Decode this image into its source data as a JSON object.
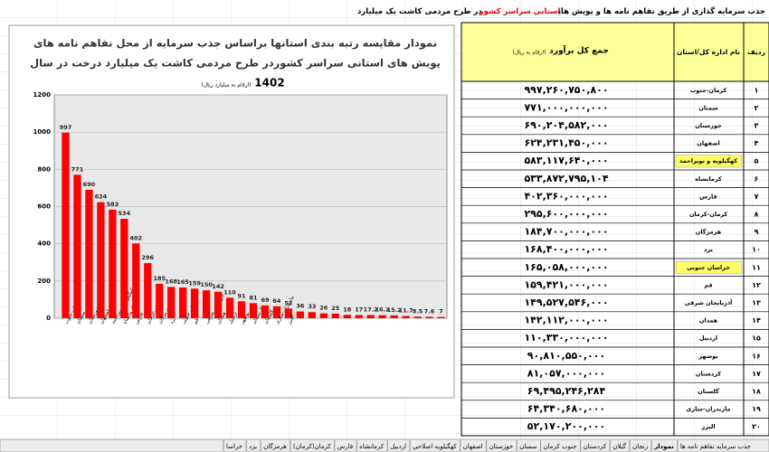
{
  "header": {
    "title_parts": [
      "جذب سرمایه گذاری از طریق تفاهم نامه ها و پویش های",
      "استانی سراسر کشور",
      "در طرح مردمی کاشت یک میلیارد"
    ]
  },
  "chart_data": {
    "type": "bar",
    "title": [
      "نمودار مقایسه رتبه بندی استانها براساس جذب سرمایه از محل تفاهم نامه های",
      "پویش های استانی سراسر کشوردر طرح مردمی کاشت یک میلیارد درخت در سال"
    ],
    "year": "1402",
    "subtitle": "(ارقام به میلیارد ریال)",
    "categories": [
      "کرمان-جنوب",
      "سمنان",
      "خوزستان",
      "اصفهان",
      "کهگیلویه و بویراحمد",
      "کرمانشاه",
      "فارس",
      "کرمان-کرمان",
      "هرمزگان",
      "یزد",
      "خراسان جنوبی",
      "قم",
      "آذربایجان شرقی",
      "همدان",
      "اردبیل",
      "بوشهر",
      "کردستان",
      "گلستان",
      "مازندران-ساری",
      "البرز",
      null,
      null,
      null,
      null,
      null,
      null,
      null,
      null,
      null,
      null,
      null,
      null,
      null
    ],
    "values": [
      997,
      771,
      690,
      624,
      583,
      534,
      402,
      296,
      185,
      168,
      165,
      159,
      150,
      142,
      110,
      91,
      81,
      69,
      64,
      52,
      36,
      33,
      26,
      25,
      18,
      17,
      17.2,
      16.2,
      15.2,
      11.7,
      8.5,
      7.6,
      7
    ],
    "color": "#ff0000",
    "ylim": [
      0,
      1200
    ],
    "yticks": [
      0,
      200,
      400,
      600,
      800,
      1000,
      1200
    ],
    "grid": true
  },
  "table": {
    "headers": [
      "ردیف",
      "نام اداره کل/استان",
      "جمع کل برآورد",
      "(ارقام به ریال)"
    ],
    "rows": [
      [
        "۱",
        "کرمان-جنوب",
        "۹۹۷,۲۶۰,۷۵۰,۸۰۰"
      ],
      [
        "۲",
        "سمنان",
        "۷۷۱,۰۰۰,۰۰۰,۰۰۰"
      ],
      [
        "۳",
        "خوزستان",
        "۶۹۰,۲۰۴,۵۸۲,۰۰۰"
      ],
      [
        "۴",
        "اصفهان",
        "۶۲۴,۲۳۱,۴۵۰,۰۰۰"
      ],
      [
        "۵",
        "کهگیلویه و بویراحمد",
        "۵۸۳,۱۱۷,۶۴۰,۰۰۰"
      ],
      [
        "۶",
        "کرمانشاه",
        "۵۳۳,۸۷۲,۷۹۵,۱۰۴"
      ],
      [
        "۷",
        "فارس",
        "۴۰۲,۳۶۰,۰۰۰,۰۰۰"
      ],
      [
        "۸",
        "کرمان-کرمان",
        "۲۹۵,۶۰۰,۰۰۰,۰۰۰"
      ],
      [
        "۹",
        "هرمزگان",
        "۱۸۴,۷۰۰,۰۰۰,۰۰۰"
      ],
      [
        "۱۰",
        "یزد",
        "۱۶۸,۴۰۰,۰۰۰,۰۰۰"
      ],
      [
        "۱۱",
        "خراسان جنوبی",
        "۱۶۵,۰۵۸,۰۰۰,۰۰۰"
      ],
      [
        "۱۲",
        "قم",
        "۱۵۹,۴۲۱,۰۰۰,۰۰۰"
      ],
      [
        "۱۳",
        "آذربایجان شرقی",
        "۱۴۹,۵۲۷,۵۴۶,۰۰۰"
      ],
      [
        "۱۴",
        "همدان",
        "۱۴۲,۱۱۲,۰۰۰,۰۰۰"
      ],
      [
        "۱۵",
        "اردبیل",
        "۱۱۰,۳۳۰,۰۰۰,۰۰۰"
      ],
      [
        "۱۶",
        "بوشهر",
        "۹۰,۸۱۰,۵۵۰,۰۰۰"
      ],
      [
        "۱۷",
        "کردستان",
        "۸۱,۰۵۷,۰۰۰,۰۰۰"
      ],
      [
        "۱۸",
        "گلستان",
        "۶۹,۴۹۵,۲۴۶,۲۸۴"
      ],
      [
        "۱۹",
        "مازندران-ساری",
        "۶۴,۳۴۰,۶۸۰,۰۰۰"
      ],
      [
        "۲۰",
        "البرز",
        "۵۲,۱۷۰,۲۰۰,۰۰۰"
      ]
    ],
    "highlight_rows": [
      4,
      10
    ]
  },
  "sheet_tabs": [
    "جذب سرمایه تفاهم نامه ها",
    "نمودار",
    "زنجان",
    "گیلان",
    "کردستان",
    "جنوب کرمان",
    "سمنان",
    "خوزستان",
    "اصفهان",
    "کهگیلویه اصلاحی",
    "اردبیل",
    "کرمانشاه",
    "فارس",
    "کرمان(کرمان)",
    "هرمزگان",
    "یزد",
    "خراسا"
  ],
  "active_tab": 1
}
